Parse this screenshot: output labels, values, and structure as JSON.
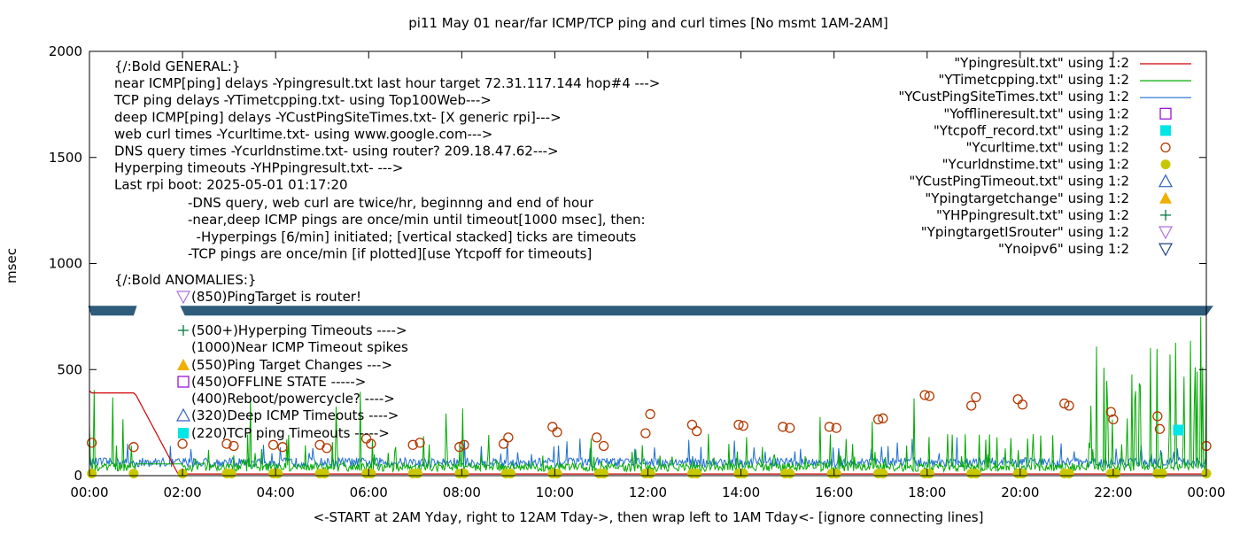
{
  "chart_data": {
    "type": "line",
    "title": "pi11 May 01  near/far ICMP/TCP ping and curl times [No msmt 1AM-2AM]",
    "xlabel": "<-START at 2AM Yday, right to 12AM Tday->, then wrap left to 1AM Tday<- [ignore connecting lines]",
    "ylabel": "msec",
    "xlim": [
      0,
      24
    ],
    "ylim": [
      0,
      2000
    ],
    "x_ticks": [
      "00:00",
      "02:00",
      "04:00",
      "06:00",
      "08:00",
      "10:00",
      "12:00",
      "14:00",
      "16:00",
      "18:00",
      "20:00",
      "22:00",
      "00:00"
    ],
    "y_ticks": [
      "0",
      "500",
      "1000",
      "1500",
      "2000"
    ],
    "y_tick_values": [
      0,
      500,
      1000,
      1500,
      2000
    ],
    "grid": false,
    "legend_position": "top-right",
    "legend": [
      {
        "label": "\"Ypingresult.txt\" using 1:2",
        "marker": "line",
        "color": "#cc0000"
      },
      {
        "label": "\"YTimetcpping.txt\" using 1:2",
        "marker": "line",
        "color": "#00aa00"
      },
      {
        "label": "\"YCustPingSiteTimes.txt\" using 1:2",
        "marker": "line",
        "color": "#1f6fd0"
      },
      {
        "label": "\"Yofflineresult.txt\" using 1:2",
        "marker": "square-open",
        "color": "#9400d3"
      },
      {
        "label": "\"Ytcpoff_record.txt\" using 1:2",
        "marker": "square-filled",
        "color": "#00e5e5"
      },
      {
        "label": "\"Ycurltime.txt\" using 1:2",
        "marker": "circle-open",
        "color": "#b33900"
      },
      {
        "label": "\"Ycurldnstime.txt\" using 1:2",
        "marker": "circle-filled",
        "color": "#c8c800"
      },
      {
        "label": "\"YCustPingTimeout.txt\" using 1:2",
        "marker": "triangle-up-open",
        "color": "#3060c0"
      },
      {
        "label": "\"Ypingtargetchange\" using 1:2",
        "marker": "triangle-up-filled",
        "color": "#f0b000"
      },
      {
        "label": "\"YHPpingresult.txt\" using 1:2",
        "marker": "plus",
        "color": "#007a3d"
      },
      {
        "label": "\"YpingtargetISrouter\" using 1:2",
        "marker": "triangle-down-open",
        "color": "#b070e0"
      },
      {
        "label": "\"Ynoipv6\" using 1:2",
        "marker": "triangle-down-open",
        "color": "#1f3f80"
      }
    ],
    "annotations_general": [
      "{/:Bold GENERAL:}",
      "near ICMP[ping] delays -Ypingresult.txt last hour target 72.31.117.144 hop#4 --->",
      "TCP ping delays -YTimetcpping.txt- using Top100Web--->",
      "deep ICMP[ping] delays -YCustPingSiteTimes.txt- [X generic rpi]--->",
      "web curl times -Ycurltime.txt- using www.google.com--->",
      "DNS query times -Ycurldnstime.txt- using router? 209.18.47.62--->",
      "Hyperping timeouts -YHPpingresult.txt- --->",
      "Last rpi boot: 2025-05-01 01:17:20"
    ],
    "annotations_notes": [
      "-DNS query, web curl are twice/hr, beginnng and end of hour",
      "-near,deep ICMP pings are once/min until timeout[1000 msec], then:",
      "  -Hyperpings [6/min] initiated; [vertical stacked] ticks are timeouts",
      "-TCP pings are once/min [if plotted][use Ytcpoff for timeouts]"
    ],
    "annotations_anomalies_title": "{/:Bold ANOMALIES:}",
    "annotations_anomalies": [
      {
        "text": "(850)PingTarget is router!",
        "marker": "triangle-down-open",
        "color": "#b070e0"
      },
      {
        "text": "(500+)Hyperping Timeouts ---->",
        "marker": "plus",
        "color": "#007a3d"
      },
      {
        "text": "(1000)Near ICMP Timeout spikes",
        "marker": "none",
        "color": ""
      },
      {
        "text": "(550)Ping Target Changes --->",
        "marker": "triangle-up-filled",
        "color": "#f0b000"
      },
      {
        "text": "(450)OFFLINE STATE ----->",
        "marker": "square-open",
        "color": "#9400d3"
      },
      {
        "text": "(400)Reboot/powercycle? ---->",
        "marker": "none",
        "color": ""
      },
      {
        "text": "(320)Deep ICMP Timeouts ---->",
        "marker": "triangle-up-open",
        "color": "#3060c0"
      },
      {
        "text": "(220)TCP ping Timeouts ----->",
        "marker": "square-filled",
        "color": "#00e5e5"
      }
    ],
    "series": [
      {
        "name": "\"Ypingresult.txt\" using 1:2",
        "color": "#cc0000",
        "x": [
          0,
          0.05,
          0.95,
          1.0,
          1.9,
          2.0,
          24.0
        ],
        "y": [
          400,
          390,
          390,
          380,
          10,
          8,
          8
        ]
      },
      {
        "name": "\"Ycurltime.txt\" using 1:2",
        "color": "#b33900",
        "x": [
          0.05,
          0.95,
          2.0,
          2.95,
          3.1,
          3.95,
          4.15,
          4.95,
          5.1,
          5.95,
          6.05,
          6.95,
          7.1,
          7.95,
          8.05,
          8.9,
          9.0,
          9.95,
          10.05,
          10.9,
          11.05,
          11.95,
          12.05,
          12.95,
          13.05,
          13.95,
          14.05,
          14.9,
          15.05,
          15.9,
          16.05,
          16.95,
          17.05,
          17.95,
          18.05,
          18.95,
          19.05,
          19.95,
          20.05,
          20.95,
          21.05,
          21.95,
          22.0,
          22.95,
          23.0,
          24.0
        ],
        "y": [
          155,
          135,
          150,
          150,
          140,
          145,
          135,
          145,
          130,
          175,
          150,
          145,
          155,
          135,
          145,
          150,
          180,
          230,
          205,
          180,
          140,
          200,
          290,
          240,
          210,
          240,
          235,
          230,
          225,
          230,
          225,
          265,
          270,
          380,
          375,
          330,
          370,
          360,
          335,
          340,
          330,
          300,
          265,
          280,
          220,
          140
        ]
      },
      {
        "name": "\"Ycurldnstime.txt\" using 1:2",
        "color": "#c8c800",
        "x": [
          0.05,
          0.95,
          2.0,
          2.95,
          3.05,
          3.95,
          4.05,
          4.95,
          5.05,
          5.95,
          6.05,
          6.95,
          7.05,
          7.95,
          8.05,
          8.95,
          9.05,
          9.95,
          10.05,
          10.95,
          11.05,
          11.95,
          12.05,
          12.95,
          13.05,
          13.95,
          14.05,
          14.95,
          15.05,
          15.95,
          16.05,
          16.95,
          17.05,
          17.95,
          18.05,
          18.95,
          19.05,
          19.95,
          20.05,
          20.95,
          21.05,
          21.95,
          22.05,
          22.95,
          23.05,
          24.0
        ],
        "y": [
          10,
          10,
          10,
          10,
          10,
          10,
          10,
          10,
          10,
          10,
          10,
          10,
          10,
          10,
          10,
          10,
          10,
          10,
          10,
          10,
          10,
          10,
          10,
          10,
          10,
          10,
          10,
          10,
          10,
          10,
          10,
          10,
          10,
          10,
          10,
          10,
          10,
          10,
          10,
          10,
          10,
          10,
          10,
          10,
          10,
          10
        ]
      },
      {
        "name": "\"Ytcpoff_record.txt\" using 1:2",
        "color": "#00e5e5",
        "x": [
          23.4
        ],
        "y": [
          215
        ]
      }
    ],
    "timeout_band_y": 780,
    "colors": {
      "band": "#2e5c7a",
      "axis": "#000000",
      "tcp": "#00aa00",
      "deep": "#1f6fd0",
      "near": "#cc0000"
    }
  }
}
